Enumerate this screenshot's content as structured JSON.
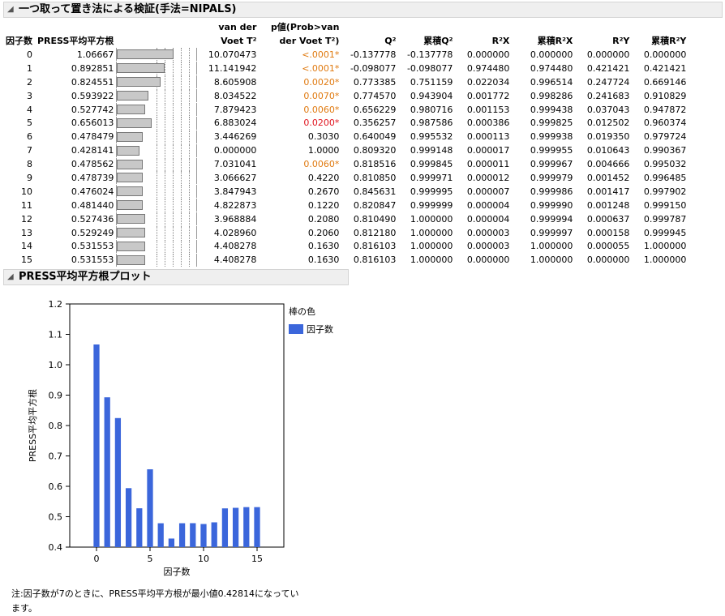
{
  "report": {
    "title": "一つ取って置き法による検証(手法=NIPALS)",
    "columns": [
      "因子数",
      "PRESS平均平方根",
      "",
      "van der Voet T²",
      "p値(Prob>van der Voet T²)",
      "Q²",
      "累積Q²",
      "R²X",
      "累積R²X",
      "R²Y",
      "累積R²Y"
    ],
    "rows": [
      {
        "factors": "0",
        "press": "1.06667",
        "t2": "10.070473",
        "p": "<.0001*",
        "psig": "or",
        "q2": "-0.137778",
        "cq2": "-0.137778",
        "r2x": "0.000000",
        "cr2x": "0.000000",
        "r2y": "0.000000",
        "cr2y": "0.000000",
        "pressval": 1.06667
      },
      {
        "factors": "1",
        "press": "0.892851",
        "t2": "11.141942",
        "p": "<.0001*",
        "psig": "or",
        "q2": "-0.098077",
        "cq2": "-0.098077",
        "r2x": "0.974480",
        "cr2x": "0.974480",
        "r2y": "0.421421",
        "cr2y": "0.421421",
        "pressval": 0.892851
      },
      {
        "factors": "2",
        "press": "0.824551",
        "t2": "8.605908",
        "p": "0.0020*",
        "psig": "or",
        "q2": "0.773385",
        "cq2": "0.751159",
        "r2x": "0.022034",
        "cr2x": "0.996514",
        "r2y": "0.247724",
        "cr2y": "0.669146",
        "pressval": 0.824551
      },
      {
        "factors": "3",
        "press": "0.593922",
        "t2": "8.034522",
        "p": "0.0070*",
        "psig": "or",
        "q2": "0.774570",
        "cq2": "0.943904",
        "r2x": "0.001772",
        "cr2x": "0.998286",
        "r2y": "0.241683",
        "cr2y": "0.910829",
        "pressval": 0.593922
      },
      {
        "factors": "4",
        "press": "0.527742",
        "t2": "7.879423",
        "p": "0.0060*",
        "psig": "or",
        "q2": "0.656229",
        "cq2": "0.980716",
        "r2x": "0.001153",
        "cr2x": "0.999438",
        "r2y": "0.037043",
        "cr2y": "0.947872",
        "pressval": 0.527742
      },
      {
        "factors": "5",
        "press": "0.656013",
        "t2": "6.883024",
        "p": "0.0200*",
        "psig": "red",
        "q2": "0.356257",
        "cq2": "0.987586",
        "r2x": "0.000386",
        "cr2x": "0.999825",
        "r2y": "0.012502",
        "cr2y": "0.960374",
        "pressval": 0.656013
      },
      {
        "factors": "6",
        "press": "0.478479",
        "t2": "3.446269",
        "p": "0.3030",
        "psig": "",
        "q2": "0.640049",
        "cq2": "0.995532",
        "r2x": "0.000113",
        "cr2x": "0.999938",
        "r2y": "0.019350",
        "cr2y": "0.979724",
        "pressval": 0.478479
      },
      {
        "factors": "7",
        "press": "0.428141",
        "t2": "0.000000",
        "p": "1.0000",
        "psig": "",
        "q2": "0.809320",
        "cq2": "0.999148",
        "r2x": "0.000017",
        "cr2x": "0.999955",
        "r2y": "0.010643",
        "cr2y": "0.990367",
        "pressval": 0.428141
      },
      {
        "factors": "8",
        "press": "0.478562",
        "t2": "7.031041",
        "p": "0.0060*",
        "psig": "or",
        "q2": "0.818516",
        "cq2": "0.999845",
        "r2x": "0.000011",
        "cr2x": "0.999967",
        "r2y": "0.004666",
        "cr2y": "0.995032",
        "pressval": 0.478562
      },
      {
        "factors": "9",
        "press": "0.478739",
        "t2": "3.066627",
        "p": "0.4220",
        "psig": "",
        "q2": "0.810850",
        "cq2": "0.999971",
        "r2x": "0.000012",
        "cr2x": "0.999979",
        "r2y": "0.001452",
        "cr2y": "0.996485",
        "pressval": 0.478739
      },
      {
        "factors": "10",
        "press": "0.476024",
        "t2": "3.847943",
        "p": "0.2670",
        "psig": "",
        "q2": "0.845631",
        "cq2": "0.999995",
        "r2x": "0.000007",
        "cr2x": "0.999986",
        "r2y": "0.001417",
        "cr2y": "0.997902",
        "pressval": 0.476024
      },
      {
        "factors": "11",
        "press": "0.481440",
        "t2": "4.822873",
        "p": "0.1220",
        "psig": "",
        "q2": "0.820847",
        "cq2": "0.999999",
        "r2x": "0.000004",
        "cr2x": "0.999990",
        "r2y": "0.001248",
        "cr2y": "0.999150",
        "pressval": 0.48144
      },
      {
        "factors": "12",
        "press": "0.527436",
        "t2": "3.968884",
        "p": "0.2080",
        "psig": "",
        "q2": "0.810490",
        "cq2": "1.000000",
        "r2x": "0.000004",
        "cr2x": "0.999994",
        "r2y": "0.000637",
        "cr2y": "0.999787",
        "pressval": 0.527436
      },
      {
        "factors": "13",
        "press": "0.529249",
        "t2": "4.028960",
        "p": "0.2060",
        "psig": "",
        "q2": "0.812180",
        "cq2": "1.000000",
        "r2x": "0.000003",
        "cr2x": "0.999997",
        "r2y": "0.000158",
        "cr2y": "0.999945",
        "pressval": 0.529249
      },
      {
        "factors": "14",
        "press": "0.531553",
        "t2": "4.408278",
        "p": "0.1630",
        "psig": "",
        "q2": "0.816103",
        "cq2": "1.000000",
        "r2x": "0.000003",
        "cr2x": "1.000000",
        "r2y": "0.000055",
        "cr2y": "1.000000",
        "pressval": 0.531553
      },
      {
        "factors": "15",
        "press": "0.531553",
        "t2": "4.408278",
        "p": "0.1630",
        "psig": "",
        "q2": "0.816103",
        "cq2": "1.000000",
        "r2x": "0.000000",
        "cr2x": "1.000000",
        "r2y": "0.000000",
        "cr2y": "1.000000",
        "pressval": 0.531553
      }
    ],
    "bar_max": 1.5
  },
  "plot": {
    "title": "PRESS平均平方根プロット",
    "legend_title": "棒の色",
    "legend_label": "因子数",
    "bar_color": "#3b66db"
  },
  "chart_data": {
    "type": "bar",
    "x": [
      0,
      1,
      2,
      3,
      4,
      5,
      6,
      7,
      8,
      9,
      10,
      11,
      12,
      13,
      14,
      15
    ],
    "values": [
      1.06667,
      0.892851,
      0.824551,
      0.593922,
      0.527742,
      0.656013,
      0.478479,
      0.428141,
      0.478562,
      0.478739,
      0.476024,
      0.48144,
      0.527436,
      0.529249,
      0.531553,
      0.531553
    ],
    "xlabel": "因子数",
    "ylabel": "PRESS平均平方根",
    "ylim": [
      0.4,
      1.2
    ],
    "xlim": [
      -2.5,
      17.5
    ],
    "yticks": [
      "0.4",
      "0.5",
      "0.6",
      "0.7",
      "0.8",
      "0.9",
      "1.0",
      "1.1",
      "1.2"
    ],
    "xticks": [
      "0",
      "5",
      "10",
      "15"
    ],
    "legend": "right"
  },
  "note": "注:因子数が7のときに、PRESS平均平方根が最小値0.42814になっています。"
}
